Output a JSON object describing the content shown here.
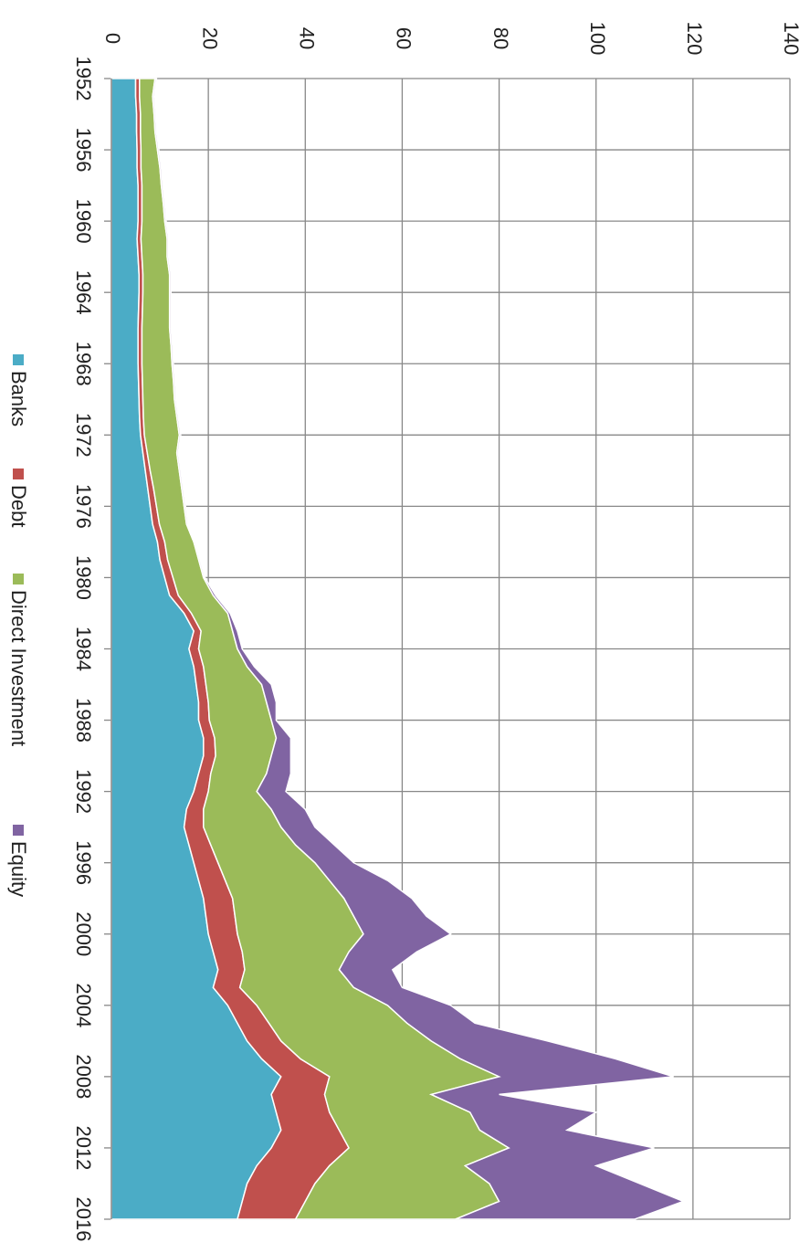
{
  "chart_data": {
    "type": "stacked-area",
    "x": [
      1952,
      1953,
      1954,
      1955,
      1956,
      1957,
      1958,
      1959,
      1960,
      1961,
      1962,
      1963,
      1964,
      1965,
      1966,
      1967,
      1968,
      1969,
      1970,
      1971,
      1972,
      1973,
      1974,
      1975,
      1976,
      1977,
      1978,
      1979,
      1980,
      1981,
      1982,
      1983,
      1984,
      1985,
      1986,
      1987,
      1988,
      1989,
      1990,
      1991,
      1992,
      1993,
      1994,
      1995,
      1996,
      1997,
      1998,
      1999,
      2000,
      2001,
      2002,
      2003,
      2004,
      2005,
      2006,
      2007,
      2008,
      2009,
      2010,
      2011,
      2012,
      2013,
      2014,
      2015,
      2016
    ],
    "xlim": [
      1952,
      2016
    ],
    "xticks": [
      1952,
      1956,
      1960,
      1964,
      1968,
      1972,
      1976,
      1980,
      1984,
      1988,
      1992,
      1996,
      2000,
      2004,
      2008,
      2012,
      2016
    ],
    "ylim": [
      0,
      140
    ],
    "yticks": [
      0,
      20,
      40,
      60,
      80,
      100,
      120,
      140
    ],
    "grid": true,
    "series": [
      {
        "name": "Banks",
        "color": "#4bacc6",
        "values": [
          5,
          5,
          5.2,
          5.2,
          5.3,
          5.3,
          5.5,
          5.5,
          5.5,
          5.3,
          5.5,
          5.7,
          5.7,
          5.6,
          5.5,
          5.5,
          5.5,
          5.6,
          5.7,
          5.8,
          6,
          6.5,
          7,
          7.5,
          8,
          8.5,
          9.5,
          10,
          11,
          12,
          15,
          17,
          16,
          17,
          17.5,
          18,
          18,
          19,
          19,
          18,
          17,
          15.5,
          15,
          16,
          17,
          18,
          19,
          19.5,
          20,
          21,
          22,
          21,
          24,
          26,
          28,
          31,
          35,
          33,
          34,
          35,
          33,
          30,
          28,
          27,
          26
        ]
      },
      {
        "name": "Debt",
        "color": "#c0504d",
        "values": [
          0.8,
          0.8,
          0.8,
          0.8,
          0.8,
          0.8,
          0.8,
          0.8,
          0.8,
          0.8,
          0.8,
          0.8,
          0.8,
          0.8,
          0.8,
          0.8,
          0.8,
          0.8,
          0.8,
          0.8,
          0.8,
          0.9,
          1,
          1.2,
          1.3,
          1.4,
          1.5,
          1.6,
          1.7,
          1.8,
          1.5,
          1.5,
          2,
          2,
          2,
          2,
          2.2,
          2.3,
          2.5,
          2.5,
          3,
          3.5,
          4,
          4.5,
          5,
          5.5,
          6,
          6,
          6,
          6,
          5.5,
          5.5,
          6,
          6.5,
          7,
          8,
          10,
          11,
          11,
          12,
          16,
          15,
          14,
          13,
          12
        ]
      },
      {
        "name": "Direct Investment",
        "color": "#9bbb59",
        "values": [
          3.2,
          2.7,
          2.8,
          3,
          3.4,
          3.9,
          4,
          4.4,
          4.7,
          5.4,
          5.2,
          5.5,
          5.5,
          5.6,
          5.7,
          6,
          6.2,
          6.4,
          6.5,
          6.9,
          7.2,
          6.1,
          6,
          5.8,
          5.7,
          5.6,
          6,
          6.4,
          6.3,
          7.2,
          7.5,
          6.5,
          8,
          9,
          11.5,
          12,
          12.8,
          12.7,
          11.5,
          11.5,
          10,
          14,
          16,
          17.5,
          20,
          21.5,
          23,
          24.5,
          26,
          22,
          19.5,
          23.5,
          27,
          28.5,
          31,
          33,
          35,
          22,
          29,
          29,
          33,
          28,
          36,
          40,
          33
        ]
      },
      {
        "name": "Equity",
        "color": "#8064a2",
        "values": [
          0.3,
          0.3,
          0.3,
          0.3,
          0.3,
          0.3,
          0.3,
          0.3,
          0.3,
          0.3,
          0.3,
          0.3,
          0.3,
          0.3,
          0.3,
          0.3,
          0.3,
          0.3,
          0.3,
          0.3,
          0.3,
          0.3,
          0.3,
          0.3,
          0.3,
          0.3,
          0.3,
          0.3,
          0.3,
          0.5,
          0.5,
          1,
          1,
          1.5,
          2,
          2,
          1,
          3,
          4,
          5,
          6,
          7,
          7,
          8,
          8,
          12,
          14,
          15,
          18,
          14,
          11,
          10,
          13,
          14,
          24,
          32,
          36,
          14,
          26,
          18,
          30,
          27,
          31,
          38,
          37
        ]
      }
    ]
  }
}
